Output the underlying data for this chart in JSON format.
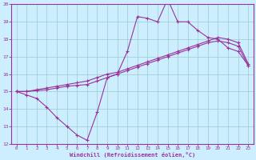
{
  "bg_color": "#cceeff",
  "line_color": "#993399",
  "grid_color": "#aadddd",
  "xlabel": "Windchill (Refroidissement éolien,°C)",
  "xlabel_color": "#993399",
  "xlim": [
    -0.5,
    23.5
  ],
  "ylim": [
    12,
    20
  ],
  "xticks": [
    0,
    1,
    2,
    3,
    4,
    5,
    6,
    7,
    8,
    9,
    10,
    11,
    12,
    13,
    14,
    15,
    16,
    17,
    18,
    19,
    20,
    21,
    22,
    23
  ],
  "yticks": [
    12,
    13,
    14,
    15,
    16,
    17,
    18,
    19,
    20
  ],
  "line1_x": [
    0,
    1,
    2,
    3,
    4,
    5,
    6,
    7,
    8,
    9,
    10,
    11,
    12,
    13,
    14,
    15,
    16,
    17,
    18,
    19,
    20,
    21,
    22,
    23
  ],
  "line1_y": [
    15.0,
    14.8,
    14.6,
    14.1,
    13.5,
    13.0,
    12.5,
    12.2,
    13.8,
    15.8,
    16.0,
    17.3,
    19.3,
    19.2,
    19.0,
    20.3,
    19.0,
    19.0,
    18.5,
    18.1,
    18.0,
    17.5,
    17.3,
    16.5
  ],
  "line2_x": [
    0,
    1,
    2,
    3,
    4,
    5,
    6,
    7,
    8,
    9,
    10,
    11,
    12,
    13,
    14,
    15,
    16,
    17,
    18,
    19,
    20,
    21,
    22,
    23
  ],
  "line2_y": [
    15.0,
    15.0,
    15.1,
    15.2,
    15.3,
    15.4,
    15.5,
    15.6,
    15.8,
    16.0,
    16.1,
    16.3,
    16.5,
    16.7,
    16.9,
    17.1,
    17.3,
    17.5,
    17.7,
    17.9,
    18.1,
    18.0,
    17.8,
    16.6
  ],
  "line3_x": [
    0,
    1,
    2,
    3,
    4,
    5,
    6,
    7,
    8,
    9,
    10,
    11,
    12,
    13,
    14,
    15,
    16,
    17,
    18,
    19,
    20,
    21,
    22,
    23
  ],
  "line3_y": [
    15.0,
    15.0,
    15.05,
    15.1,
    15.2,
    15.3,
    15.35,
    15.4,
    15.6,
    15.8,
    16.0,
    16.2,
    16.4,
    16.6,
    16.8,
    17.0,
    17.2,
    17.4,
    17.6,
    17.8,
    17.9,
    17.8,
    17.6,
    16.5
  ]
}
